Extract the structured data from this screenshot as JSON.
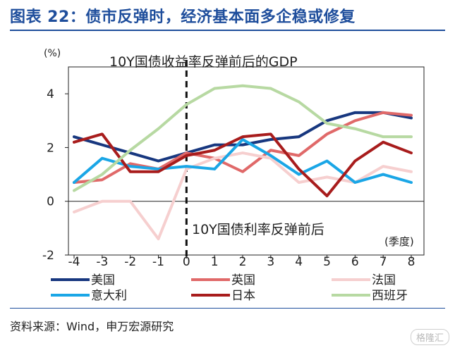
{
  "title": "图表 22：债市反弹时，经济基本面多企稳或修复",
  "source": "资料来源：Wind，申万宏源研究",
  "watermark": "格隆汇",
  "chart_data": {
    "type": "line",
    "y_unit_label": "(%)",
    "x_unit_label": "(季度)",
    "annotation_top": "10Y国债收益率反弹前后的GDP",
    "annotation_bottom": "10Y国债利率反弹前后",
    "x": [
      -4,
      -3,
      -2,
      -1,
      0,
      1,
      2,
      3,
      4,
      5,
      6,
      7,
      8
    ],
    "ylim": [
      -2,
      5
    ],
    "yticks": [
      -2,
      0,
      2,
      4
    ],
    "vertical_dashed_line_at_x": 0,
    "grid": false,
    "legend_position": "bottom",
    "series": [
      {
        "name": "美国",
        "color": "#17377f",
        "values": [
          2.4,
          2.1,
          1.8,
          1.5,
          1.8,
          2.1,
          2.1,
          2.3,
          2.4,
          3.0,
          3.3,
          3.3,
          3.1
        ]
      },
      {
        "name": "英国",
        "color": "#e06969",
        "values": [
          0.7,
          0.8,
          1.4,
          1.2,
          1.8,
          1.6,
          1.1,
          1.9,
          1.7,
          2.5,
          3.0,
          3.3,
          3.2
        ]
      },
      {
        "name": "法国",
        "color": "#f6cfcf",
        "values": [
          -0.4,
          0.0,
          0.0,
          -1.4,
          1.2,
          1.6,
          1.8,
          1.6,
          0.7,
          0.9,
          0.7,
          1.3,
          1.1
        ]
      },
      {
        "name": "意大利",
        "color": "#1aa6e6",
        "values": [
          0.7,
          1.6,
          1.3,
          1.2,
          1.3,
          1.2,
          2.3,
          1.7,
          1.0,
          1.5,
          0.7,
          1.0,
          0.7
        ]
      },
      {
        "name": "日本",
        "color": "#a81c1c",
        "values": [
          2.2,
          2.5,
          1.1,
          1.1,
          1.7,
          1.9,
          2.4,
          2.5,
          1.2,
          0.2,
          1.5,
          2.2,
          1.8
        ]
      },
      {
        "name": "西班牙",
        "color": "#b7d9a2",
        "values": [
          0.4,
          1.0,
          1.9,
          2.7,
          3.6,
          4.2,
          4.3,
          4.2,
          3.7,
          2.9,
          2.7,
          2.4,
          2.4
        ]
      }
    ]
  }
}
